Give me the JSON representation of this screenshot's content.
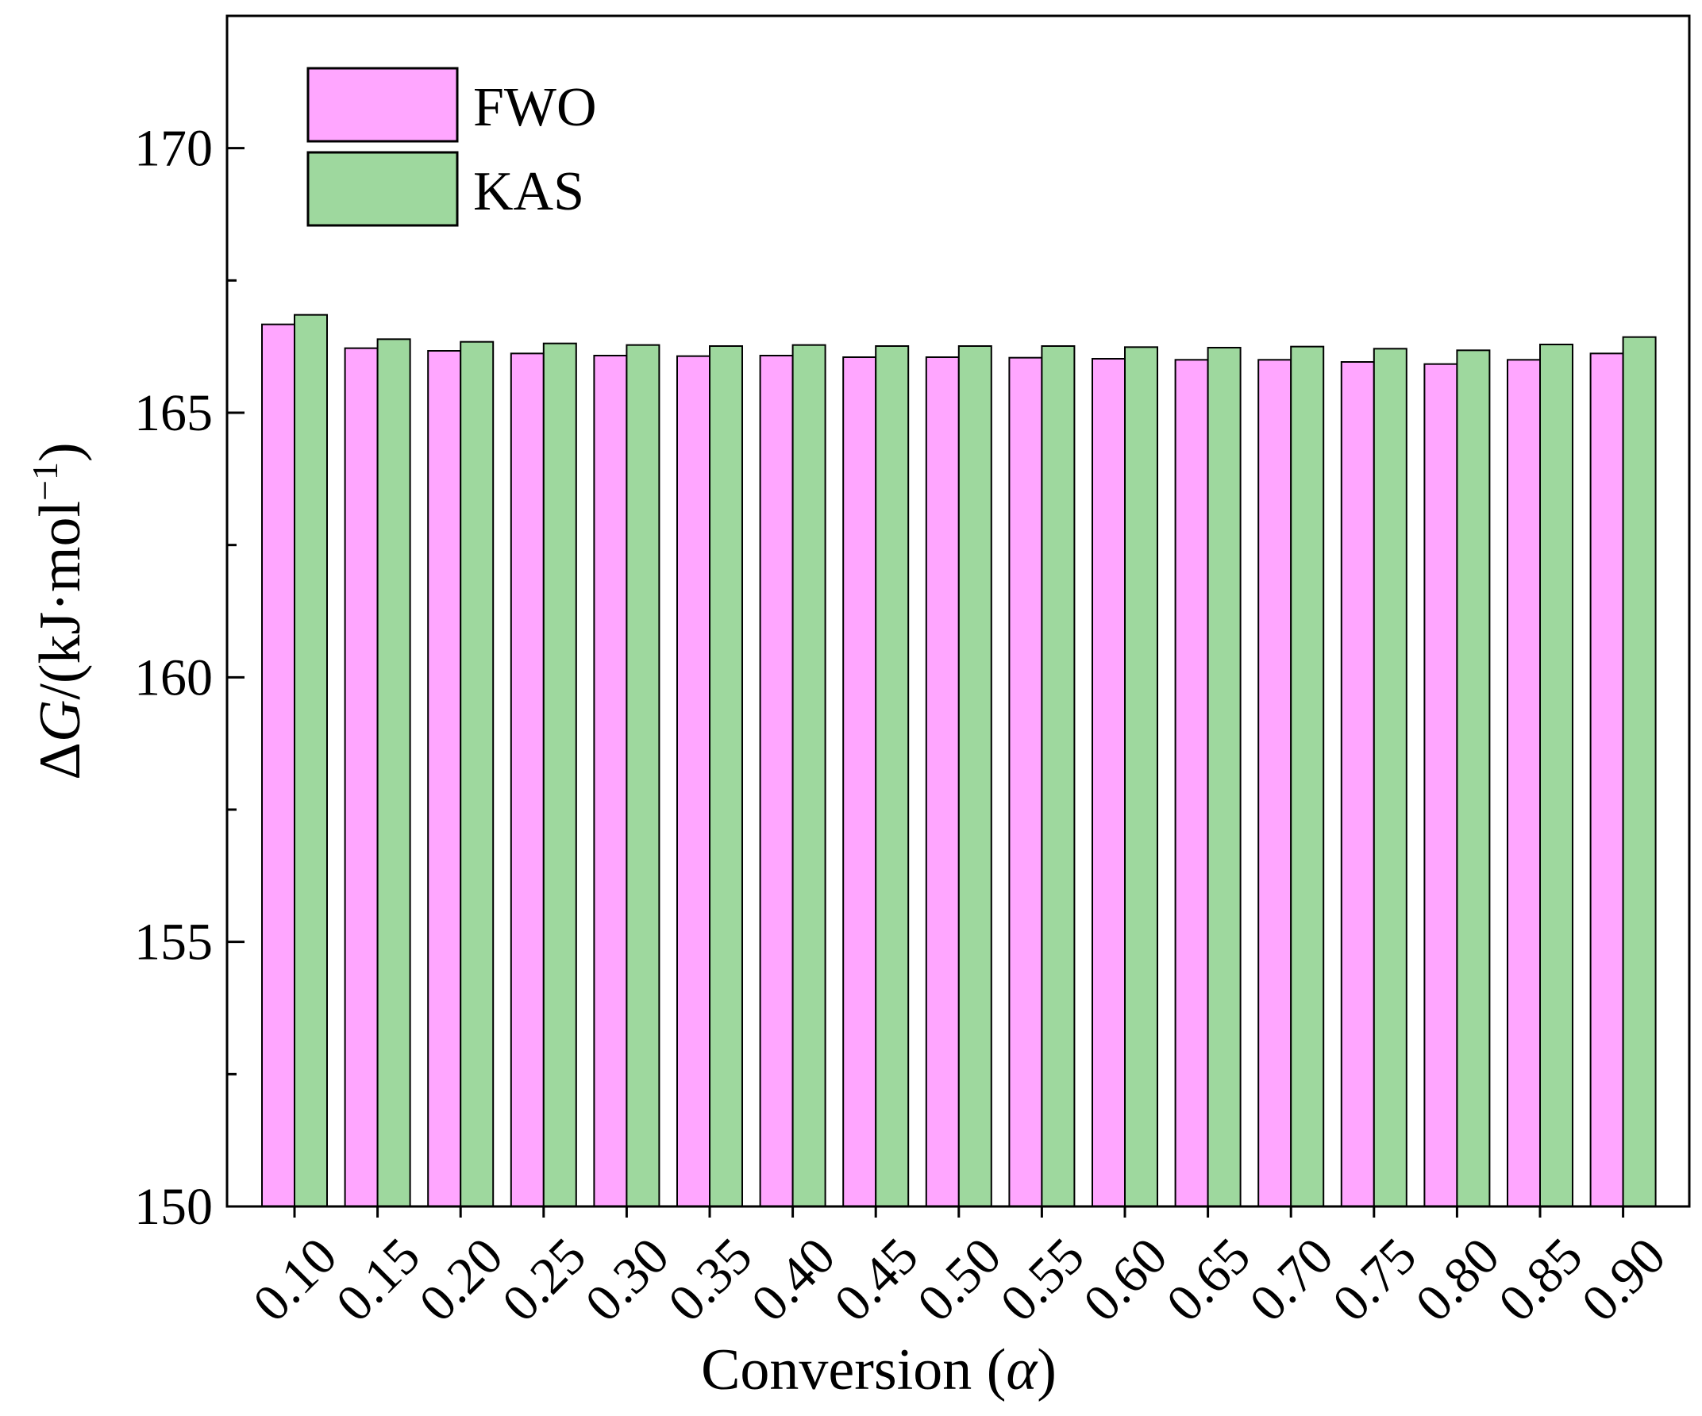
{
  "chart_data": {
    "type": "bar",
    "xlabel": "Conversion (α)",
    "xlabel_parts": {
      "prefix": "Conversion (",
      "symbol": "α",
      "suffix": ")"
    },
    "ylabel": "ΔG/(kJ·mol−1)",
    "ylabel_parts": {
      "delta": "Δ",
      "var": "G",
      "unit": "/(kJ·mol",
      "sup": "−1",
      "close": ")"
    },
    "ylim": [
      150,
      172.5
    ],
    "yticks": [
      "150",
      "155",
      "160",
      "165",
      "170"
    ],
    "categories": [
      "0.10",
      "0.15",
      "0.20",
      "0.25",
      "0.30",
      "0.35",
      "0.40",
      "0.45",
      "0.50",
      "0.55",
      "0.60",
      "0.65",
      "0.70",
      "0.75",
      "0.80",
      "0.85",
      "0.90"
    ],
    "series": [
      {
        "name": "FWO",
        "color": "#ffa6ff",
        "values": [
          166.67,
          166.22,
          166.17,
          166.12,
          166.08,
          166.07,
          166.08,
          166.05,
          166.05,
          166.04,
          166.02,
          166.0,
          166.0,
          165.96,
          165.92,
          166.0,
          166.12
        ]
      },
      {
        "name": "KAS",
        "color": "#9ed89e",
        "values": [
          166.85,
          166.39,
          166.34,
          166.31,
          166.28,
          166.26,
          166.28,
          166.26,
          166.26,
          166.26,
          166.24,
          166.23,
          166.25,
          166.21,
          166.18,
          166.29,
          166.43
        ]
      }
    ],
    "legend_position": "top-left",
    "grid": false
  }
}
